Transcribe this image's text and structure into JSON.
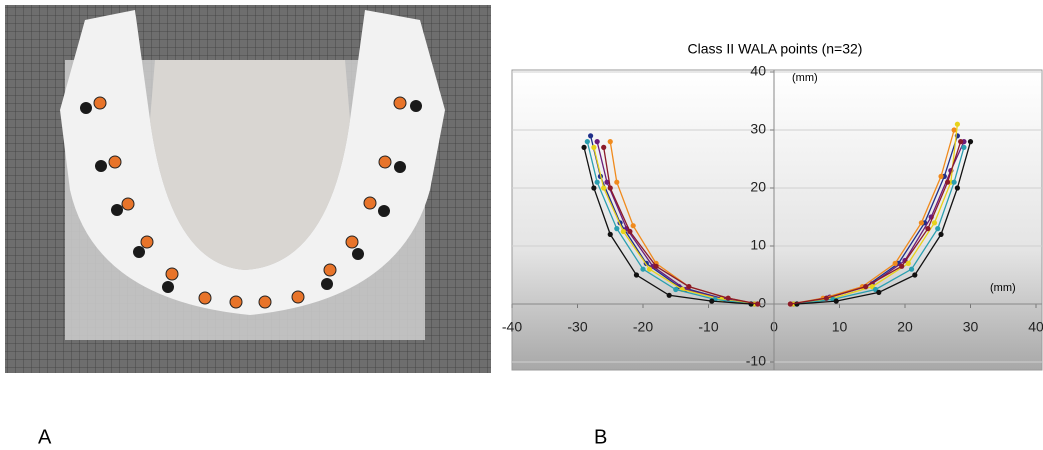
{
  "panel_labels": [
    "A",
    "B"
  ],
  "chart_data": {
    "type": "line",
    "title": "Class II WALA points (n=32)",
    "x_unit": "(mm)",
    "y_unit": "(mm)",
    "xlim": [
      -40,
      40
    ],
    "xticks": [
      -40,
      -30,
      -20,
      -10,
      0,
      10,
      20,
      30,
      40
    ],
    "ylim": [
      -10,
      40
    ],
    "yticks": [
      -10,
      0,
      10,
      20,
      30,
      40
    ],
    "grid": true,
    "series": [
      {
        "color": "#1f2f8a",
        "x": [
          -28,
          -26.5,
          -23.5,
          -19.5,
          -14.5,
          -8,
          -3,
          null,
          3,
          8,
          14,
          19,
          23,
          26,
          28
        ],
        "values": [
          29,
          22,
          14,
          7,
          3,
          1,
          0,
          null,
          0,
          1,
          3,
          7,
          14,
          22,
          29
        ]
      },
      {
        "color": "#6a1b7a",
        "x": [
          -27,
          -25.5,
          -22.5,
          -18.5,
          -13.5,
          -7.5,
          -3,
          null,
          3,
          8.5,
          15,
          20,
          24,
          27,
          29
        ],
        "values": [
          28,
          21,
          13,
          6.5,
          2.5,
          0.8,
          0,
          null,
          0,
          1.2,
          3.5,
          7.5,
          15,
          23,
          28
        ]
      },
      {
        "color": "#f08a1c",
        "x": [
          -25,
          -24,
          -21.5,
          -18,
          -13,
          -7,
          -2.5,
          null,
          2.5,
          7.5,
          13.5,
          18.5,
          22.5,
          25.5,
          27.5
        ],
        "values": [
          28,
          21,
          13.5,
          7,
          3,
          1,
          0,
          null,
          0,
          1,
          3,
          7,
          14,
          22,
          30
        ]
      },
      {
        "color": "#e8d21a",
        "x": [
          -27.5,
          -26,
          -23,
          -19,
          -14,
          -8,
          -3,
          null,
          3,
          9,
          15,
          20.5,
          24.5,
          27,
          28
        ],
        "values": [
          27,
          20,
          12.5,
          6,
          2.5,
          0.8,
          0,
          null,
          0,
          1,
          3,
          7,
          14,
          21,
          31
        ]
      },
      {
        "color": "#2a9fb0",
        "x": [
          -28.5,
          -27,
          -24,
          -20,
          -15,
          -9,
          -3.5,
          null,
          3.5,
          9,
          15.5,
          21,
          25,
          27.5,
          29
        ],
        "values": [
          28,
          21,
          13,
          6,
          2.5,
          0.8,
          0,
          null,
          0,
          0.8,
          2.5,
          6,
          13,
          21,
          27
        ]
      },
      {
        "color": "#111111",
        "x": [
          -29,
          -27.5,
          -25,
          -21,
          -16,
          -9.5,
          -3.5,
          null,
          3.5,
          9.5,
          16,
          21.5,
          25.5,
          28,
          30
        ],
        "values": [
          27,
          20,
          12,
          5,
          1.5,
          0.5,
          0,
          null,
          0,
          0.5,
          2,
          5,
          12,
          20,
          28
        ]
      },
      {
        "color": "#8b1a2a",
        "x": [
          -26,
          -25,
          -22,
          -18,
          -13,
          -7,
          -2.5,
          null,
          2.5,
          8,
          14,
          19.5,
          23.5,
          26.5,
          28.5
        ],
        "values": [
          27,
          20,
          12.5,
          6.5,
          3,
          1,
          0,
          null,
          0,
          1,
          3,
          6.5,
          13,
          21,
          28
        ]
      }
    ]
  }
}
